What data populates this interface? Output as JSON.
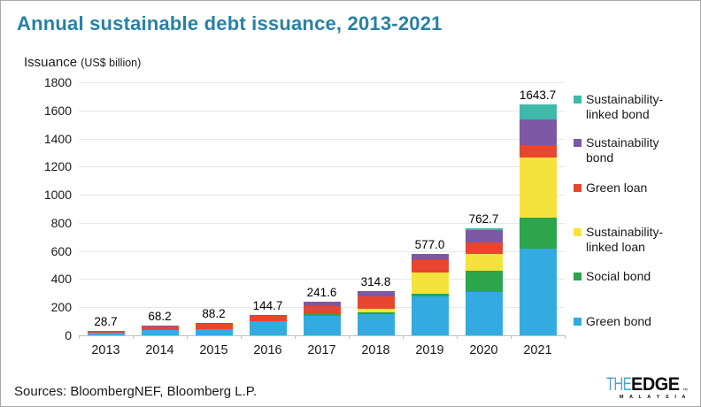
{
  "colors": {
    "title": "#2781A6",
    "grid": "#E7E7E7",
    "axis": "#BFBFBF",
    "logo_the": "#4FA6C9"
  },
  "header": {
    "title": "Annual sustainable debt issuance, 2013-2021"
  },
  "footer": {
    "sources": "Sources: BloombergNEF, Bloomberg L.P.",
    "logo_the": "THE",
    "logo_edge": "EDGE",
    "logo_tm": "™",
    "logo_malaysia": "M A L A Y S I A"
  },
  "chart_data": {
    "type": "bar",
    "stacked": true,
    "title": "Annual sustainable debt issuance, 2013-2021",
    "ylabel": "Issuance",
    "ylabel_unit": "(US$ billion)",
    "xlabel": "",
    "grid": true,
    "legend_position": "right",
    "ylim": [
      0,
      1800
    ],
    "ytick_step": 200,
    "ytick_labels": [
      "0",
      "200",
      "400",
      "600",
      "800",
      "1000",
      "1200",
      "1400",
      "1600",
      "1800"
    ],
    "categories": [
      "2013",
      "2014",
      "2015",
      "2016",
      "2017",
      "2018",
      "2019",
      "2020",
      "2021"
    ],
    "total_labels": [
      "28.7",
      "68.2",
      "88.2",
      "144.7",
      "241.6",
      "314.8",
      "577.0",
      "762.7",
      "1643.7"
    ],
    "totals": [
      28.7,
      68.2,
      88.2,
      144.7,
      241.6,
      314.8,
      577.0,
      762.7,
      1643.7
    ],
    "series": [
      {
        "name": "Green bond",
        "color": "#33ABE1",
        "values": [
          22.0,
          38.0,
          45.0,
          98.0,
          140.0,
          150.0,
          276.0,
          308.0,
          620.0
        ]
      },
      {
        "name": "Social bond",
        "color": "#2CA54C",
        "values": [
          0,
          0,
          0,
          0,
          14.0,
          12.0,
          18.0,
          152.0,
          218.0
        ]
      },
      {
        "name": "Sustainability-linked loan",
        "color": "#F4E33D",
        "values": [
          0,
          0,
          0,
          0,
          0,
          24.0,
          152.0,
          117.0,
          425.0
        ]
      },
      {
        "name": "Green loan",
        "color": "#E8462F",
        "values": [
          6.7,
          28.0,
          41.0,
          44.0,
          56.0,
          94.0,
          92.0,
          83.0,
          90.0
        ]
      },
      {
        "name": "Sustainability bond",
        "color": "#7C58A5",
        "values": [
          0,
          2.2,
          2.2,
          2.7,
          31.6,
          34.8,
          39.0,
          92.0,
          185.0
        ]
      },
      {
        "name": "Sustainability-linked bond",
        "color": "#3FB9A9",
        "values": [
          0,
          0,
          0,
          0,
          0,
          0,
          0,
          10.7,
          105.7
        ]
      }
    ],
    "legend": [
      {
        "lines": [
          "Sustainability-",
          "linked bond"
        ],
        "color": "#3FB9A9",
        "top": 103
      },
      {
        "lines": [
          "Sustainability",
          "bond"
        ],
        "color": "#7C58A5",
        "top": 152
      },
      {
        "lines": [
          "Green loan"
        ],
        "color": "#E8462F",
        "top": 203
      },
      {
        "lines": [
          "Sustainability-",
          "linked loan"
        ],
        "color": "#F4E33D",
        "top": 253
      },
      {
        "lines": [
          "Social bond"
        ],
        "color": "#2CA54C",
        "top": 303
      },
      {
        "lines": [
          "Green bond"
        ],
        "color": "#33ABE1",
        "top": 354
      }
    ]
  }
}
